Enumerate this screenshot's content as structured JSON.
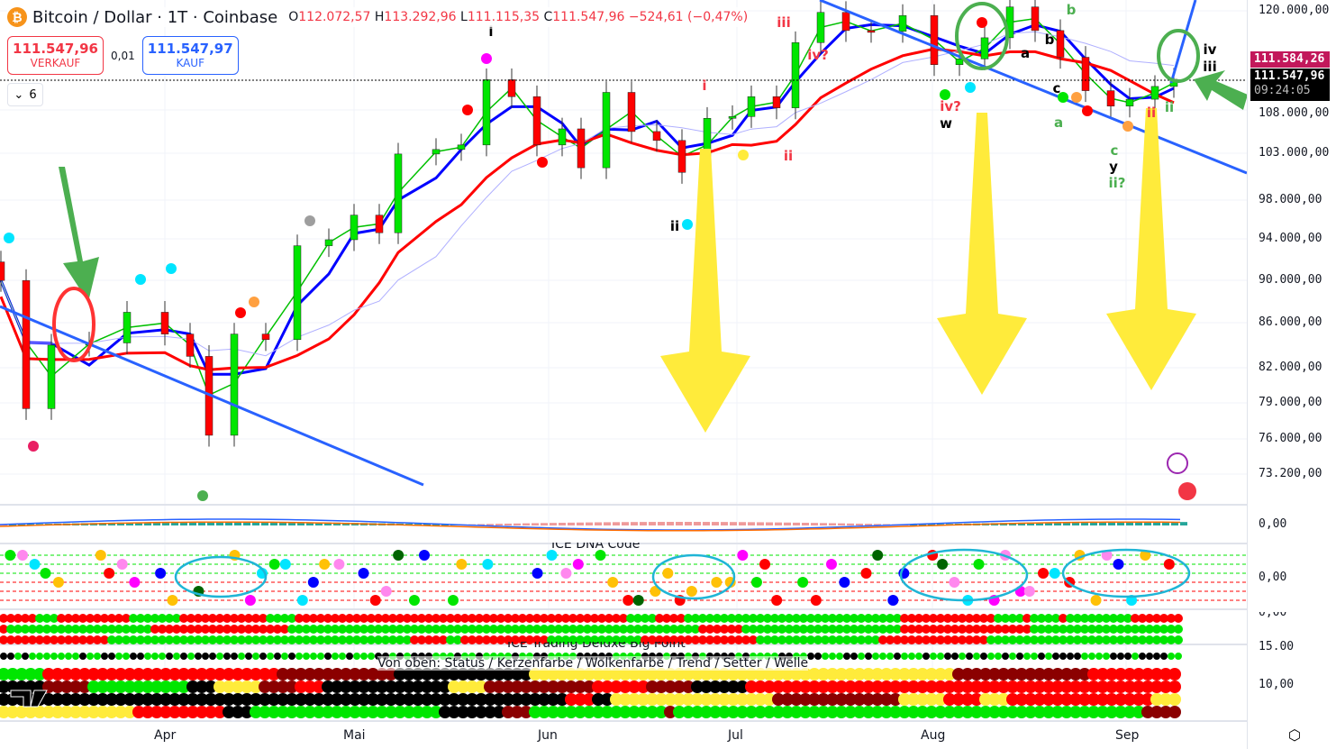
{
  "header": {
    "symbol_icon": "bitcoin-icon",
    "title": "Bitcoin / Dollar · 1T · Coinbase",
    "open_label": "O",
    "open": "112.072,57",
    "high_label": "H",
    "high": "113.292,96",
    "low_label": "L",
    "low": "111.115,35",
    "close_label": "C",
    "close": "111.547,96",
    "change": "−524,61 (−0,47%)"
  },
  "trade": {
    "sell_price": "111.547,96",
    "sell_label": "VERKAUF",
    "spread": "0,01",
    "buy_price": "111.547,97",
    "buy_label": "KAUF"
  },
  "indicators_toggle": {
    "count": "6"
  },
  "price_axis": {
    "labels": [
      "120.000,00",
      "108.000,00",
      "103.000,00",
      "98.000,00",
      "94.000,00",
      "90.000,00",
      "86.000,00",
      "82.000,00",
      "79.000,00",
      "76.000,00",
      "73.200,00"
    ],
    "tag_high": "111.584,26",
    "tag_last": "111.547,96",
    "countdown": "09:24:05",
    "pane_labels": [
      "0,00",
      "0,00",
      "0,00",
      "15,00",
      "10,00"
    ]
  },
  "time_axis": {
    "labels": [
      "Apr",
      "Mai",
      "Jun",
      "Jul",
      "Aug",
      "Sep"
    ]
  },
  "panes": {
    "dna_title": "ICE DNA Code",
    "bigpoint_title": "ICE Trading Deluxe Big Point",
    "bigpoint_legend": "Von oben: Status / Kerzenfarbe / Wolkenfarbe / Trend / Setter / Welle"
  },
  "annotations": [
    "i",
    "iii",
    "iv?",
    "i",
    "ii",
    "ii",
    "iv?",
    "w",
    "a",
    "b",
    "b",
    "c",
    "a",
    "c",
    "y",
    "ii?",
    "ii",
    "ii",
    "iv",
    "iii"
  ],
  "colors": {
    "up": "#00e600",
    "down": "#ff0000",
    "trendline": "#2962ff",
    "arrow_yellow": "#ffeb3b",
    "arrow_green": "#4caf50",
    "tag_high": "#c2185b",
    "tag_last": "#000000"
  },
  "chart_data": {
    "type": "candlestick",
    "scale": "log",
    "ylim": [
      71000,
      122000
    ],
    "x": [
      "03-06",
      "03-10",
      "03-14",
      "03-20",
      "03-26",
      "04-01",
      "04-05",
      "04-08",
      "04-12",
      "04-17",
      "04-22",
      "04-27",
      "05-01",
      "05-05",
      "05-08",
      "05-14",
      "05-18",
      "05-22",
      "05-26",
      "05-30",
      "06-03",
      "06-06",
      "06-10",
      "06-14",
      "06-18",
      "06-22",
      "06-26",
      "06-30",
      "07-03",
      "07-07",
      "07-10",
      "07-14",
      "07-18",
      "07-22",
      "07-27",
      "08-01",
      "08-05",
      "08-09",
      "08-13",
      "08-17",
      "08-21",
      "08-25",
      "08-29",
      "09-01",
      "09-05",
      "09-08"
    ],
    "close": [
      90000,
      78500,
      84000,
      84200,
      87000,
      85000,
      83000,
      76300,
      85000,
      84500,
      93400,
      94000,
      96500,
      94700,
      103000,
      103500,
      104000,
      111500,
      109500,
      104000,
      105800,
      101500,
      110000,
      105500,
      104500,
      101000,
      107000,
      107200,
      109500,
      108200,
      116000,
      119800,
      117500,
      117400,
      119400,
      113300,
      114000,
      116600,
      120500,
      117500,
      114200,
      110200,
      108400,
      109200,
      110700,
      111548
    ]
  }
}
